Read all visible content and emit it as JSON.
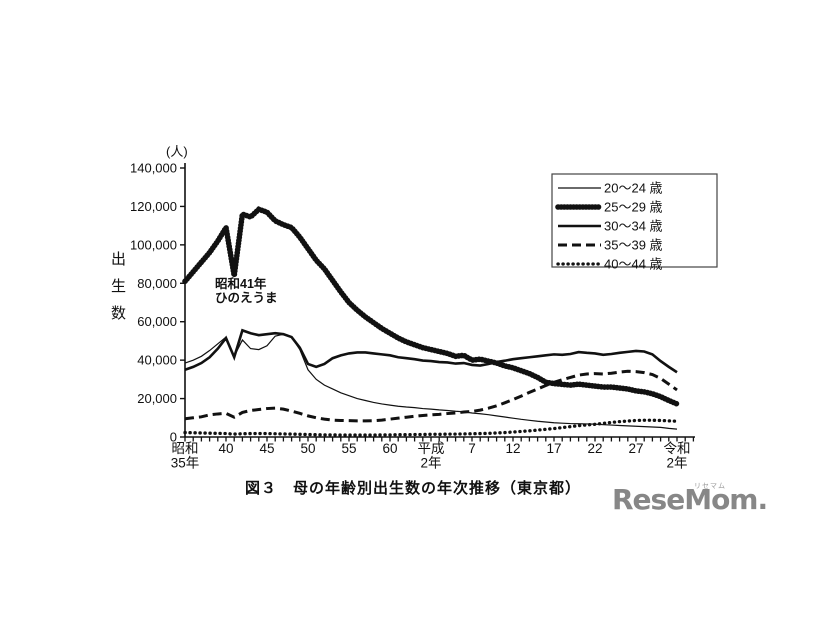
{
  "logo": {
    "text": "ReseMom.",
    "ruby": "リセマム",
    "color": "#878787"
  },
  "colors": {
    "line": "#111111",
    "background": "#ffffff"
  },
  "chart_data": {
    "type": "line",
    "title": "図３　母の年齢別出生数の年次推移（東京都）",
    "ylabel": "出生数",
    "unit": "(人)",
    "ylim": [
      0,
      140000
    ],
    "y_tick_interval": 20000,
    "y_tick_labels": [
      "0",
      "20,000",
      "40,000",
      "60,000",
      "80,000",
      "100,000",
      "120,000",
      "140,000"
    ],
    "grid": false,
    "legend_position": "top-right",
    "annotation": {
      "year": 1966,
      "lines": [
        "昭和41年",
        "ひのえうま"
      ]
    },
    "x_years": [
      1960,
      1961,
      1962,
      1963,
      1964,
      1965,
      1966,
      1967,
      1968,
      1969,
      1970,
      1971,
      1972,
      1973,
      1974,
      1975,
      1976,
      1977,
      1978,
      1979,
      1980,
      1981,
      1982,
      1983,
      1984,
      1985,
      1986,
      1987,
      1988,
      1989,
      1990,
      1991,
      1992,
      1993,
      1994,
      1995,
      1996,
      1997,
      1998,
      1999,
      2000,
      2001,
      2002,
      2003,
      2004,
      2005,
      2006,
      2007,
      2008,
      2009,
      2010,
      2011,
      2012,
      2013,
      2014,
      2015,
      2016,
      2017,
      2018,
      2019,
      2020
    ],
    "x_tick_labels": [
      {
        "year": 1960,
        "lines": [
          "昭和",
          "35年"
        ]
      },
      {
        "year": 1965,
        "lines": [
          "40"
        ]
      },
      {
        "year": 1970,
        "lines": [
          "45"
        ]
      },
      {
        "year": 1975,
        "lines": [
          "50"
        ]
      },
      {
        "year": 1980,
        "lines": [
          "55"
        ]
      },
      {
        "year": 1985,
        "lines": [
          "60"
        ]
      },
      {
        "year": 1990,
        "lines": [
          "平成",
          "2年"
        ]
      },
      {
        "year": 1995,
        "lines": [
          "7"
        ]
      },
      {
        "year": 2000,
        "lines": [
          "12"
        ]
      },
      {
        "year": 2005,
        "lines": [
          "17"
        ]
      },
      {
        "year": 2010,
        "lines": [
          "22"
        ]
      },
      {
        "year": 2015,
        "lines": [
          "27"
        ]
      },
      {
        "year": 2020,
        "lines": [
          "令和",
          "2年"
        ]
      }
    ],
    "series": [
      {
        "name": "20〜24 歳",
        "key": "age-20-24",
        "style": "thin-solid",
        "values": [
          38500,
          40000,
          42000,
          45000,
          48500,
          52000,
          42000,
          50500,
          46000,
          45500,
          47500,
          52500,
          53500,
          52000,
          45500,
          35000,
          30000,
          27000,
          25000,
          23000,
          21500,
          20000,
          19000,
          18000,
          17200,
          16600,
          16000,
          15600,
          15300,
          14800,
          14500,
          14100,
          13800,
          13400,
          13100,
          12500,
          12100,
          11600,
          11000,
          10400,
          9800,
          9200,
          8700,
          8200,
          7800,
          7400,
          7200,
          7000,
          6900,
          6800,
          6700,
          6400,
          6200,
          6000,
          5800,
          5600,
          5400,
          5200,
          5000,
          4500,
          4100
        ]
      },
      {
        "name": "25〜29 歳",
        "key": "age-25-29",
        "style": "beaded",
        "values": [
          81000,
          86000,
          91000,
          96000,
          102000,
          109000,
          84000,
          116000,
          114500,
          118500,
          117000,
          112500,
          110500,
          109000,
          104000,
          98000,
          92000,
          87500,
          81500,
          75500,
          70000,
          66000,
          62500,
          59500,
          56500,
          54000,
          51500,
          49500,
          48000,
          46500,
          45500,
          44500,
          43500,
          42000,
          42500,
          40000,
          40500,
          39500,
          38500,
          37000,
          36000,
          34500,
          33000,
          31000,
          28500,
          27800,
          27400,
          27000,
          27500,
          27000,
          26500,
          26000,
          26000,
          25500,
          25000,
          24000,
          23500,
          22500,
          21000,
          19000,
          17200
        ]
      },
      {
        "name": "30〜34 歳",
        "key": "age-30-34",
        "style": "solid",
        "values": [
          35000,
          36500,
          38500,
          41500,
          46000,
          51500,
          41500,
          55500,
          54000,
          53000,
          53500,
          54000,
          53500,
          52000,
          46500,
          38000,
          36500,
          38000,
          41000,
          42500,
          43500,
          44000,
          44000,
          43500,
          43000,
          42500,
          41500,
          41000,
          40500,
          39800,
          39500,
          39000,
          38800,
          38200,
          38500,
          37500,
          37200,
          38000,
          39000,
          39700,
          40500,
          41000,
          41500,
          42000,
          42500,
          43000,
          42800,
          43200,
          44200,
          43800,
          43500,
          42800,
          43200,
          43800,
          44300,
          44800,
          44500,
          43000,
          39500,
          36500,
          33700
        ]
      },
      {
        "name": "35〜39 歳",
        "key": "age-35-39",
        "style": "dashed",
        "values": [
          9500,
          10000,
          10500,
          11500,
          12000,
          12300,
          10300,
          12800,
          13800,
          14300,
          14800,
          15000,
          14500,
          13500,
          12300,
          11000,
          10000,
          9300,
          8800,
          8600,
          8500,
          8400,
          8400,
          8500,
          8800,
          9300,
          9800,
          10300,
          10800,
          11200,
          11500,
          11800,
          12200,
          12500,
          13000,
          13300,
          14000,
          15000,
          16200,
          17800,
          19500,
          21300,
          23200,
          25000,
          26800,
          28500,
          29800,
          31000,
          32200,
          32800,
          33000,
          32800,
          33200,
          33800,
          34200,
          34000,
          33500,
          32500,
          30500,
          27500,
          24500
        ]
      },
      {
        "name": "40〜44 歳",
        "key": "age-40-44",
        "style": "dotted",
        "values": [
          2300,
          2200,
          2100,
          2000,
          1900,
          1800,
          1500,
          1700,
          1800,
          1800,
          1800,
          1700,
          1600,
          1500,
          1400,
          1300,
          1200,
          1100,
          1100,
          1000,
          1000,
          1000,
          1000,
          1000,
          1100,
          1100,
          1200,
          1200,
          1300,
          1300,
          1400,
          1400,
          1500,
          1500,
          1600,
          1700,
          1800,
          1900,
          2100,
          2300,
          2600,
          2900,
          3200,
          3600,
          4000,
          4400,
          4900,
          5400,
          5900,
          6300,
          6600,
          7100,
          7600,
          8000,
          8300,
          8600,
          8700,
          8700,
          8600,
          8400,
          8200
        ]
      }
    ]
  }
}
